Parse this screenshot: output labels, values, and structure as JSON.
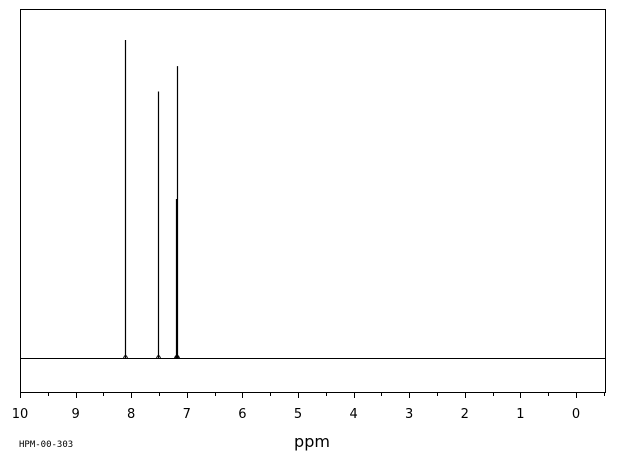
{
  "chart_data": {
    "type": "line",
    "title": "",
    "xlabel": "ppm",
    "ylabel": "",
    "xlim": [
      10,
      0
    ],
    "x_reversed": true,
    "x_ticks": [
      10,
      9,
      8,
      7,
      6,
      5,
      4,
      3,
      2,
      1,
      0
    ],
    "minor_ticks_step": 0.5,
    "peaks": [
      {
        "ppm": 8.12,
        "relative_intensity": 1.0
      },
      {
        "ppm": 7.52,
        "relative_intensity": 0.838
      },
      {
        "ppm": 7.18,
        "relative_intensity": 0.918
      },
      {
        "ppm": 7.2,
        "relative_intensity": 0.5
      }
    ],
    "grid": false,
    "legend": "none"
  },
  "footer_code": "HPM-00-303"
}
